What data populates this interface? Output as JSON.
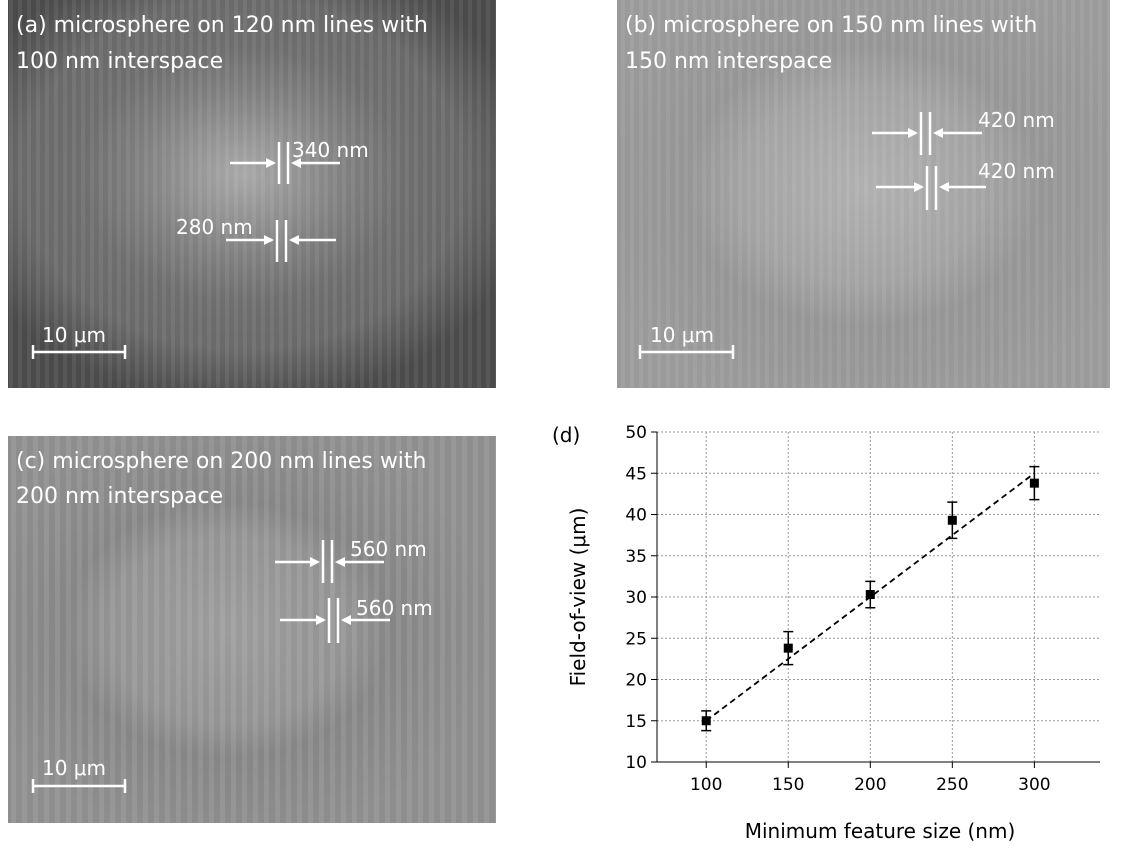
{
  "panels": [
    {
      "caption": [
        "(a) microsphere on 120 nm lines with",
        "100 nm interspace"
      ],
      "annotations": [
        "340 nm",
        "280 nm"
      ],
      "scale_bar": "10 μm"
    },
    {
      "caption": [
        "(b) microsphere on 150 nm lines with",
        "150 nm interspace"
      ],
      "annotations": [
        "420 nm",
        "420 nm"
      ],
      "scale_bar": "10 μm"
    },
    {
      "caption": [
        "(c) microsphere on 200 nm lines with",
        "200 nm interspace"
      ],
      "annotations": [
        "560 nm",
        "560 nm"
      ],
      "scale_bar": "10 μm"
    }
  ],
  "chart_data": {
    "type": "scatter",
    "panel_label": "(d)",
    "x_label": "Minimum feature size (nm)",
    "y_label": "Field-of-view (μm)",
    "x": [
      100,
      150,
      200,
      250,
      300
    ],
    "values": [
      15.0,
      23.8,
      30.3,
      39.3,
      43.8
    ],
    "errors": [
      1.2,
      2.0,
      1.6,
      2.2,
      2.0
    ],
    "color": "#000000",
    "trendline": {
      "x": [
        100,
        300
      ],
      "values": [
        15,
        45
      ]
    },
    "xlim": [
      70,
      340
    ],
    "xticks": [
      100,
      150,
      200,
      250,
      300
    ],
    "ylim": [
      10,
      50
    ],
    "yticks": [
      10,
      15,
      20,
      25,
      30,
      35,
      40,
      45,
      50
    ],
    "grid": true
  }
}
